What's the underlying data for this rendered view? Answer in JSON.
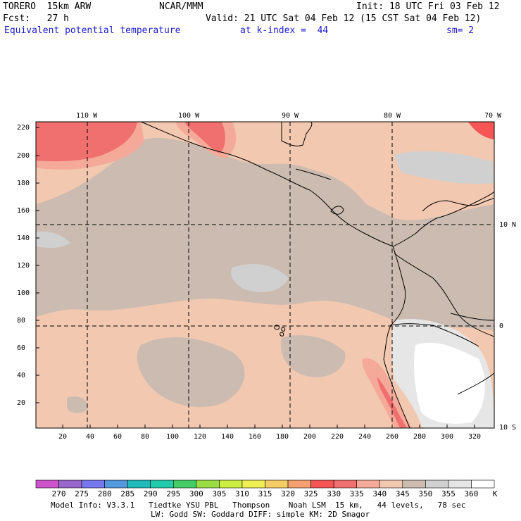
{
  "header": {
    "model": "TORERO  15km ARW",
    "org": "NCAR/MMM",
    "init": "Init: 18 UTC Fri 03 Feb 12",
    "fcst": "Fcst:   27 h",
    "valid": "Valid: 21 UTC Sat 04 Feb 12 (15 CST Sat 04 Feb 12)",
    "field": "Equivalent potential temperature",
    "level": "at k-index =  44",
    "smoothing": "sm= 2"
  },
  "lon_labels": [
    "110 W",
    "100 W",
    "90 W",
    "80 W",
    "70 W"
  ],
  "lat_labels": [
    "10 N",
    "0",
    "10 S"
  ],
  "y_ticks": [
    "220",
    "200",
    "180",
    "160",
    "140",
    "120",
    "100",
    "80",
    "60",
    "40",
    "20"
  ],
  "x_ticks": [
    "20",
    "40",
    "60",
    "80",
    "100",
    "120",
    "140",
    "160",
    "180",
    "200",
    "220",
    "240",
    "260",
    "280",
    "300",
    "320"
  ],
  "colorbar": {
    "labels": [
      "270",
      "275",
      "280",
      "285",
      "290",
      "295",
      "300",
      "305",
      "310",
      "315",
      "320",
      "325",
      "330",
      "335",
      "340",
      "345",
      "350",
      "355",
      "360"
    ],
    "unit": "K",
    "colors": [
      "#cc55cc",
      "#9966cc",
      "#7777ee",
      "#5599dd",
      "#22bbbb",
      "#22ccaa",
      "#44cc66",
      "#99dd44",
      "#ccee44",
      "#eeee55",
      "#f5cc66",
      "#f5a070",
      "#f55555",
      "#f07070",
      "#f5aa99",
      "#f2c8b0",
      "#cbbbb0",
      "#d0d0d0",
      "#e6e6e6",
      "#ffffff"
    ]
  },
  "footer": {
    "line1": "Model Info: V3.3.1   Tiedtke YSU PBL   Thompson    Noah LSM  15 km,   44 levels,   78 sec",
    "line2": "LW: Godd SW: Goddard DIFF: simple KM: 2D Smagor"
  }
}
